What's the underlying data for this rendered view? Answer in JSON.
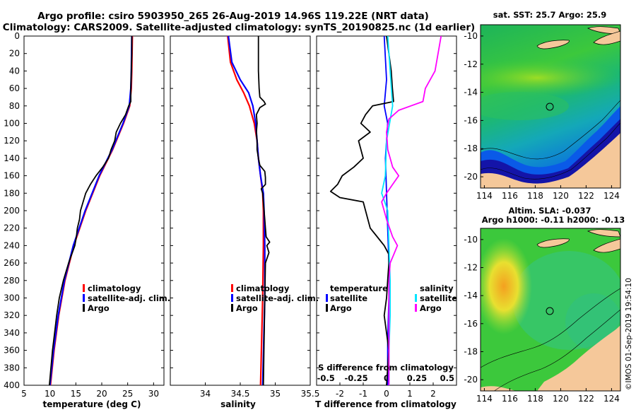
{
  "header": {
    "title_line1": "Argo profile: csiro 5903950_265 26-Aug-2019 14.96S 119.22E (NRT data)",
    "title_line2": "Climatology: CARS2009. Satellite-adjusted climatology: synTS_20190825.nc (1d earlier)"
  },
  "depth_axis": {
    "ticks": [
      0,
      20,
      40,
      60,
      80,
      100,
      120,
      140,
      160,
      180,
      200,
      220,
      240,
      260,
      280,
      300,
      320,
      340,
      360,
      380,
      400
    ],
    "range": [
      0,
      400
    ]
  },
  "colors": {
    "climatology": "#ff0000",
    "satellite": "#0000ff",
    "argo": "#000000",
    "satellite_s": "#00e5ff",
    "argo_s": "#ff00ff",
    "land": "#f5c89a"
  },
  "chart_data": [
    {
      "type": "line",
      "xlabel": "temperature (deg C)",
      "xlim": [
        5,
        32
      ],
      "xticks": [
        5,
        10,
        15,
        20,
        25,
        30
      ],
      "ylim": [
        0,
        400
      ],
      "legend": [
        "climatology",
        "satellite-adj. clim.",
        "Argo"
      ],
      "series": [
        {
          "name": "climatology",
          "depth": [
            0,
            40,
            60,
            80,
            100,
            130,
            160,
            200,
            240,
            280,
            320,
            360,
            400
          ],
          "values": [
            25.9,
            25.8,
            25.7,
            25.4,
            24.2,
            22.1,
            19.6,
            16.9,
            14.6,
            12.9,
            11.7,
            10.8,
            10.1
          ]
        },
        {
          "name": "satellite-adj. clim.",
          "depth": [
            0,
            40,
            60,
            80,
            100,
            130,
            160,
            200,
            240,
            280,
            320,
            360,
            400
          ],
          "values": [
            25.8,
            25.7,
            25.6,
            25.3,
            24.1,
            22.0,
            19.5,
            16.8,
            14.5,
            12.8,
            11.6,
            10.7,
            10.0
          ]
        },
        {
          "name": "Argo",
          "depth": [
            0,
            20,
            40,
            60,
            75,
            80,
            90,
            100,
            110,
            120,
            130,
            140,
            150,
            160,
            170,
            180,
            190,
            200,
            210,
            220,
            230,
            240,
            260,
            280,
            300,
            320,
            340,
            360,
            380,
            400
          ],
          "values": [
            25.8,
            25.8,
            25.7,
            25.6,
            25.6,
            25.2,
            24.6,
            23.6,
            22.8,
            22.5,
            21.8,
            21.3,
            20.2,
            18.9,
            17.8,
            16.9,
            16.4,
            15.9,
            15.7,
            15.3,
            15.1,
            14.8,
            13.6,
            12.6,
            11.8,
            11.3,
            10.9,
            10.5,
            10.2,
            9.9
          ]
        }
      ]
    },
    {
      "type": "line",
      "xlabel": "salinity",
      "xlim": [
        33.5,
        35.5
      ],
      "xticks": [
        34,
        34.5,
        35,
        35.5
      ],
      "ylim": [
        0,
        400
      ],
      "legend": [
        "climatology",
        "satellite-adj. clim.",
        "Argo"
      ],
      "series": [
        {
          "name": "climatology",
          "depth": [
            0,
            30,
            50,
            65,
            80,
            100,
            120,
            140,
            160,
            180,
            200,
            240,
            300,
            400
          ],
          "values": [
            34.32,
            34.36,
            34.45,
            34.55,
            34.63,
            34.7,
            34.74,
            34.76,
            34.79,
            34.82,
            34.83,
            34.83,
            34.82,
            34.79
          ]
        },
        {
          "name": "satellite-adj. clim.",
          "depth": [
            0,
            30,
            50,
            65,
            80,
            100,
            120,
            140,
            160,
            180,
            200,
            240,
            300,
            400
          ],
          "values": [
            34.33,
            34.38,
            34.5,
            34.62,
            34.68,
            34.72,
            34.74,
            34.76,
            34.79,
            34.83,
            34.84,
            34.85,
            34.85,
            34.82
          ]
        },
        {
          "name": "Argo",
          "depth": [
            0,
            40,
            60,
            70,
            75,
            78,
            82,
            90,
            100,
            110,
            120,
            130,
            140,
            148,
            155,
            162,
            170,
            175,
            180,
            190,
            200,
            210,
            220,
            230,
            236,
            240,
            248,
            260,
            300,
            350,
            400
          ],
          "values": [
            34.76,
            34.76,
            34.77,
            34.78,
            34.84,
            34.86,
            34.78,
            34.73,
            34.74,
            34.73,
            34.74,
            34.74,
            34.76,
            34.78,
            34.85,
            34.86,
            34.86,
            34.8,
            34.82,
            34.83,
            34.84,
            34.85,
            34.86,
            34.87,
            34.92,
            34.88,
            34.91,
            34.86,
            34.85,
            34.84,
            34.83
          ]
        }
      ]
    },
    {
      "type": "line",
      "xlabel": "T difference from climatology",
      "xlabel_top": "S difference from climatology",
      "xlim": [
        -3,
        3
      ],
      "xticks": [
        -2,
        -1,
        0,
        1,
        2
      ],
      "xticks_top_values": [
        -0.5,
        -0.25,
        0,
        0.25,
        0.5
      ],
      "xticks_top_positions_in_T_units": [
        -2.6,
        -1.3,
        0,
        1.3,
        2.6
      ],
      "ylim": [
        0,
        400
      ],
      "legend_left": [
        "temperature",
        "satellite",
        "Argo"
      ],
      "legend_right": [
        "salinity",
        "satellite",
        "Argo"
      ],
      "series": [
        {
          "name": "T satellite",
          "depth": [
            0,
            50,
            80,
            100,
            140,
            180,
            220,
            260,
            300,
            350,
            400
          ],
          "values": [
            -0.1,
            0,
            -0.1,
            0.05,
            -0.05,
            0,
            0.05,
            0.1,
            0.1,
            0.05,
            0.05
          ]
        },
        {
          "name": "T Argo",
          "depth": [
            0,
            20,
            40,
            60,
            75,
            80,
            90,
            100,
            110,
            120,
            140,
            150,
            160,
            170,
            178,
            185,
            190,
            200,
            210,
            220,
            230,
            240,
            250,
            260,
            280,
            300,
            320,
            340,
            360,
            380,
            400
          ],
          "values": [
            0,
            0.1,
            0.2,
            0.25,
            0.3,
            -0.6,
            -0.9,
            -1.1,
            -0.7,
            -1.2,
            -1.0,
            -1.4,
            -1.9,
            -2.1,
            -2.4,
            -2.0,
            -1.0,
            -0.9,
            -0.8,
            -0.7,
            -0.4,
            -0.1,
            0.1,
            0.1,
            0.05,
            0.0,
            -0.1,
            0.0,
            0.1,
            0.05,
            0.0
          ]
        },
        {
          "name": "S satellite",
          "depth": [
            0,
            40,
            80,
            120,
            160,
            180,
            200,
            240,
            280,
            320,
            360,
            400
          ],
          "values": [
            0.01,
            0.03,
            0.05,
            0.0,
            -0.01,
            -0.04,
            0.01,
            0.02,
            0.03,
            0.03,
            0.02,
            0.02
          ]
        },
        {
          "name": "S Argo",
          "depth": [
            0,
            40,
            60,
            75,
            80,
            85,
            95,
            110,
            130,
            150,
            160,
            170,
            180,
            190,
            200,
            210,
            230,
            240,
            250,
            260,
            280,
            300,
            340,
            380,
            400
          ],
          "values": [
            0.45,
            0.4,
            0.32,
            0.3,
            0.2,
            0.1,
            0.02,
            0.0,
            0.01,
            0.05,
            0.1,
            0.05,
            0.0,
            -0.04,
            -0.02,
            0.0,
            0.05,
            0.09,
            0.06,
            0.03,
            0.02,
            0.02,
            0.02,
            0.02,
            0.02
          ]
        }
      ]
    },
    {
      "type": "heatmap",
      "title": "sat. SST: 25.7 Argo: 25.9",
      "xticks": [
        114,
        116,
        118,
        120,
        122,
        124
      ],
      "yticks": [
        -10,
        -12,
        -14,
        -16,
        -18,
        -20
      ],
      "lon_range": [
        113.7,
        124.7
      ],
      "lat_range": [
        -9.2,
        -20.8
      ],
      "marker": {
        "lon": 119.22,
        "lat": -14.96
      }
    },
    {
      "type": "heatmap",
      "title_line1": "Altim. SLA: -0.037",
      "title_line2": "Argo h1000: -0.11 h2000: -0.13",
      "xticks": [
        114,
        116,
        118,
        120,
        122,
        124
      ],
      "yticks": [
        -10,
        -12,
        -14,
        -16,
        -18,
        -20
      ],
      "lon_range": [
        113.7,
        124.7
      ],
      "lat_range": [
        -9.2,
        -20.8
      ],
      "marker": {
        "lon": 119.22,
        "lat": -14.96
      }
    }
  ],
  "watermark": "©IMOS 01-Sep-2019 19:54:10"
}
